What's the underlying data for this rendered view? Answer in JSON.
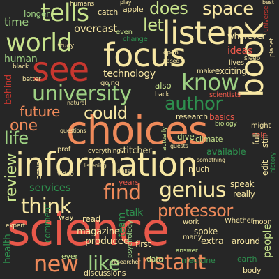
{
  "words": {
    "science": "science",
    "choices": "choices",
    "information": "information",
    "focus": "focus",
    "listen": "listen",
    "see": "see",
    "world": "world",
    "tells": "tells",
    "book": "book",
    "university": "university",
    "know": "know",
    "genius": "genius",
    "instant": "instant",
    "think": "think",
    "find": "find",
    "new": "new",
    "like": "like",
    "professor": "professor",
    "author": "author",
    "space": "space",
    "does": "does",
    "let": "let",
    "future": "future",
    "could": "could",
    "life": "life",
    "review": "review",
    "one": "one",
    "technology": "technology",
    "time": "time",
    "longer": "longer",
    "human": "human",
    "overcast": "overcast",
    "services": "services",
    "talk": "talk",
    "magazine": "magazine",
    "produced": "produced",
    "health": "health",
    "people": "people",
    "ideas": "ideas",
    "wherever": "wherever",
    "exciting": "exciting",
    "research": "research",
    "basics": "basics",
    "stitcher": "stitcher",
    "dive": "dive",
    "climate": "climate",
    "available": "available",
    "speak": "speak",
    "really": "really",
    "comment": "comment",
    "team": "team",
    "psychology": "psychology",
    "spoke": "spoke",
    "extra": "extra",
    "around": "around",
    "earth": "earth",
    "body": "body",
    "medicine": "medicine",
    "first": "first",
    "data": "data",
    "discussions": "discussions",
    "ever": "ever",
    "years": "years",
    "much": "much",
    "read": "read",
    "also": "also",
    "behind": "behind",
    "catch": "catch",
    "apple": "apple",
    "change": "change",
    "even": "even",
    "open": "open",
    "lives": "lives",
    "make": "make",
    "going": "going",
    "scientists": "scientists",
    "might": "might",
    "full": "full",
    "still": "still",
    "help": "help",
    "edit": "edit",
    "way": "way",
    "brain": "brain",
    "prof": "prof",
    "video": "video",
    "everything": "everything",
    "work": "work",
    "moon": "moon",
    "whether": "Whether",
    "many": "many",
    "better": "better",
    "black": "black",
    "universe": "universe",
    "planet": "planet",
    "history": "history",
    "biology": "biology",
    "back": "back",
    "actually": "actually",
    "new_small": "new",
    "humans": "humans",
    "study": "study",
    "sleep": "sleep",
    "answer": "answer",
    "expert": "expert",
    "researcher": "researcher",
    "natural": "natural",
    "questions": "questions",
    "skills": "skills",
    "listening": "listening",
    "guests": "guests",
    "something": "something",
    "play": "play",
    "based": "based",
    "best": "best"
  },
  "colors": {
    "background": "#262626",
    "palette": [
      "#f7e7a3",
      "#ef8a5a",
      "#c8e48c",
      "#c7372f",
      "#2e8f4e",
      "#9ed183",
      "#e8584a"
    ]
  }
}
